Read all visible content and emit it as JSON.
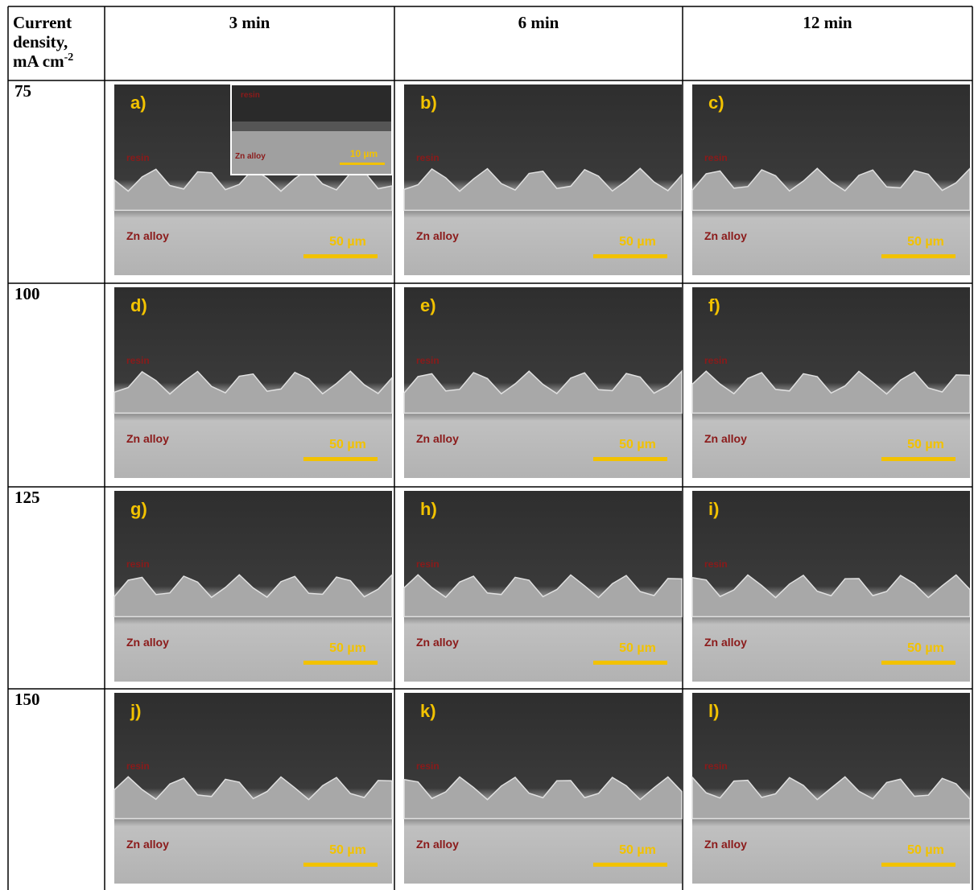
{
  "table": {
    "header": {
      "first": {
        "lines": [
          "Current",
          "density,",
          "mA cm"
        ],
        "sup": "-2"
      },
      "columns": [
        "3 min",
        "6 min",
        "12 min"
      ]
    },
    "rows": [
      {
        "label": "75",
        "panels": [
          {
            "letter": "a)",
            "resin": "resin",
            "alloy": "Zn alloy",
            "scale": "50 µm",
            "inset": {
              "resin": "resin",
              "alloy": "Zn alloy",
              "scale": "10 µm"
            }
          },
          {
            "letter": "b)",
            "resin": "resin",
            "alloy": "Zn alloy",
            "scale": "50 µm"
          },
          {
            "letter": "c)",
            "resin": "resin",
            "alloy": "Zn alloy",
            "scale": "50 µm"
          }
        ]
      },
      {
        "label": "100",
        "panels": [
          {
            "letter": "d)",
            "resin": "resin",
            "alloy": "Zn alloy",
            "scale": "50 µm"
          },
          {
            "letter": "e)",
            "resin": "resin",
            "alloy": "Zn alloy",
            "scale": "50 µm"
          },
          {
            "letter": "f)",
            "resin": "resin",
            "alloy": "Zn alloy",
            "scale": "50 µm"
          }
        ]
      },
      {
        "label": "125",
        "panels": [
          {
            "letter": "g)",
            "resin": "resin",
            "alloy": "Zn alloy",
            "scale": "50 µm"
          },
          {
            "letter": "h)",
            "resin": "resin",
            "alloy": "Zn alloy",
            "scale": "50 µm"
          },
          {
            "letter": "i)",
            "resin": "resin",
            "alloy": "Zn alloy",
            "scale": "50 µm"
          }
        ]
      },
      {
        "label": "150",
        "panels": [
          {
            "letter": "j)",
            "resin": "resin",
            "alloy": "Zn alloy",
            "scale": "50 µm"
          },
          {
            "letter": "k)",
            "resin": "resin",
            "alloy": "Zn alloy",
            "scale": "50 µm"
          },
          {
            "letter": "l)",
            "resin": "resin",
            "alloy": "Zn alloy",
            "scale": "50 µm"
          }
        ]
      }
    ]
  }
}
